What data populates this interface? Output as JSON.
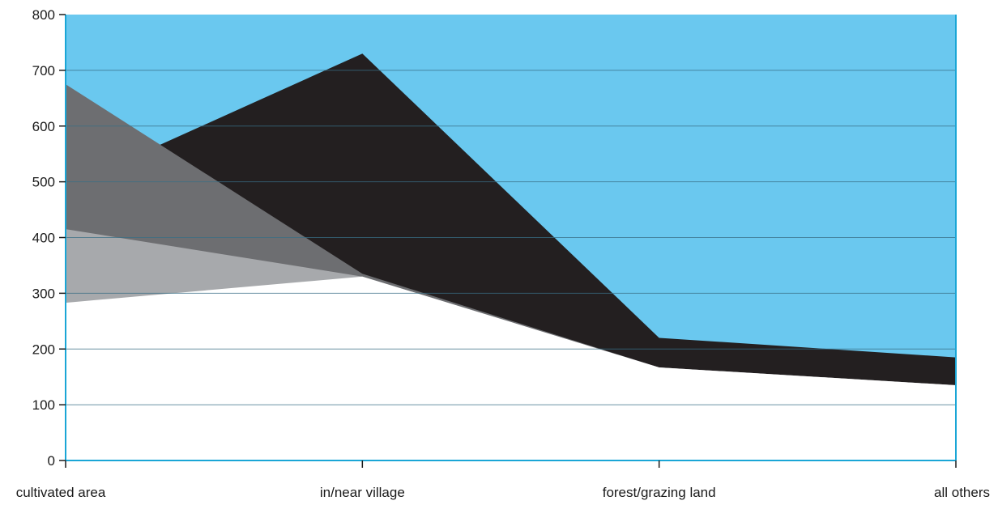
{
  "colors": {
    "background_area": "#6ac8ef",
    "axis": "#1aa6d6",
    "gridline": "#3a6f86",
    "tick_label": "#1a1a1a"
  },
  "chart_data": {
    "type": "area",
    "title": "",
    "xlabel": "",
    "ylabel": "",
    "categories": [
      "cultivated area",
      "in/near village",
      "forest/grazing land",
      "all others"
    ],
    "ylim": [
      0,
      800
    ],
    "yticks": [
      0,
      100,
      200,
      300,
      400,
      500,
      600,
      700,
      800
    ],
    "grid": true,
    "legend": "none",
    "series": [
      {
        "color": "#6ac8ef",
        "values": [
          800,
          800,
          800,
          800
        ]
      },
      {
        "color": "#231f20",
        "values": [
          490,
          730,
          220,
          185
        ]
      },
      {
        "color": "#6d6e71",
        "values": [
          675,
          335,
          167,
          135
        ]
      },
      {
        "color": "#a7a9ac",
        "values": [
          415,
          330,
          167,
          135
        ]
      },
      {
        "color": "#ffffff",
        "values": [
          283,
          330,
          167,
          135
        ]
      }
    ]
  }
}
